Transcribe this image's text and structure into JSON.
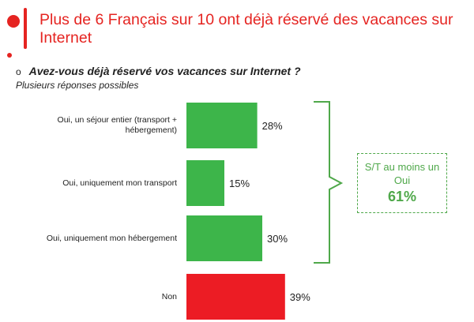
{
  "header": {
    "title": "Plus de 6 Français sur 10 ont déjà réservé des vacances sur Internet"
  },
  "question": {
    "bullet": "o",
    "text": "Avez-vous déjà réservé vos  vacances sur Internet ?",
    "note": "Plusieurs réponses possibles"
  },
  "summary": {
    "label": "S/T au moins un Oui",
    "value": "61%"
  },
  "colors": {
    "accent": "#e52421",
    "yes_bar": "#3db54a",
    "no_bar": "#ec1c24",
    "bracket": "#4fa84a"
  },
  "chart_data": {
    "type": "bar",
    "orientation": "horizontal",
    "categories": [
      "Oui, un séjour entier (transport + hébergement)",
      "Oui, uniquement mon transport",
      "Oui, uniquement mon hébergement",
      "Non"
    ],
    "values": [
      28,
      15,
      30,
      39
    ],
    "value_labels": [
      "28%",
      "15%",
      "30%",
      "39%"
    ],
    "unit": "%",
    "xlim": [
      0,
      100
    ],
    "grid": false,
    "legend": "none"
  }
}
